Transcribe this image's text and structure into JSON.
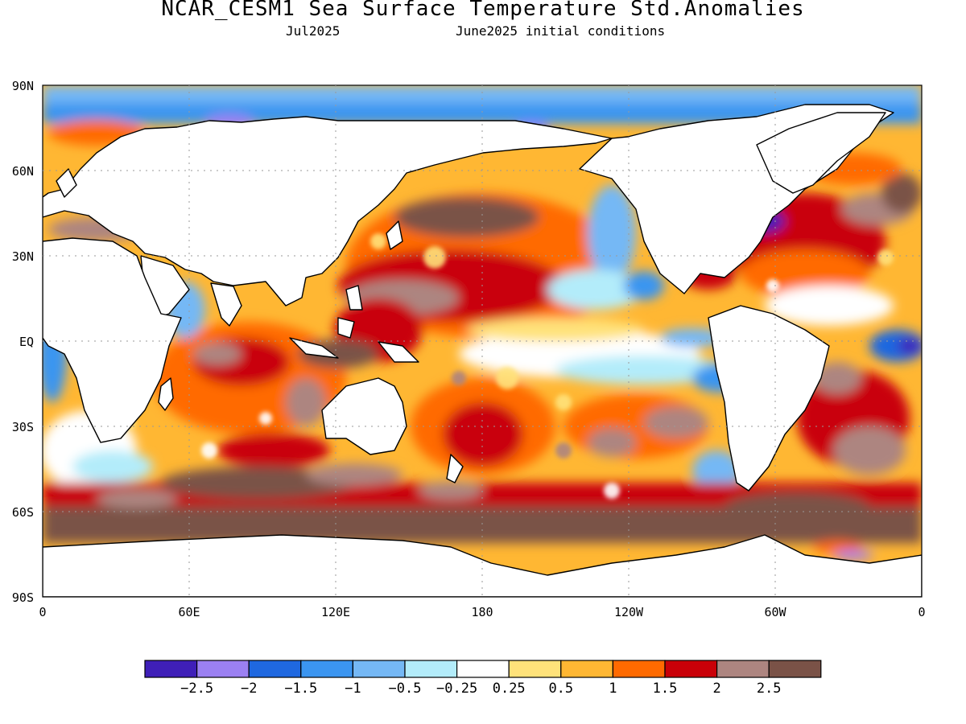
{
  "title": "NCAR_CESM1 Sea Surface Temperature Std.Anomalies",
  "subtitle_left": "Jul2025",
  "subtitle_right": "June2025 initial conditions",
  "lat_labels": [
    "90N",
    "60N",
    "30N",
    "EQ",
    "30S",
    "60S",
    "90S"
  ],
  "lon_labels": [
    "0",
    "60E",
    "120E",
    "180",
    "120W",
    "60W",
    "0"
  ],
  "colorbar": {
    "colors": [
      "#3f1fb8",
      "#9b80f2",
      "#1f68e0",
      "#3b95f0",
      "#75b8f5",
      "#b3ecfa",
      "#ffffff",
      "#ffe27a",
      "#ffb733",
      "#ff6a00",
      "#c90008",
      "#ad8580",
      "#7a5247"
    ],
    "labels": [
      "−2.5",
      "−2",
      "−1.5",
      "−1",
      "−0.5",
      "−0.25",
      "0.25",
      "0.5",
      "1",
      "1.5",
      "2",
      "2.5"
    ]
  },
  "palette": {
    "land": "#ffffff",
    "warm_base": "#ffb733",
    "warm_strong": "#ff6a00",
    "hot": "#c90008",
    "hotter": "#ad8580",
    "hottest": "#7a5247",
    "cool_light": "#b3ecfa",
    "cool": "#75b8f5",
    "cool_mid": "#3b95f0",
    "cool_strong": "#1f68e0",
    "cold": "#9b80f2",
    "coldest": "#3f1fb8",
    "neutral": "#ffffff",
    "pale_warm": "#ffe27a"
  }
}
